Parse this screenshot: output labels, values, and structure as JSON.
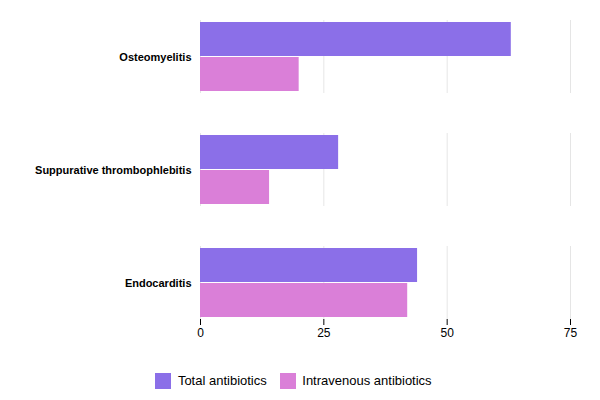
{
  "chart_data": {
    "type": "bar",
    "orientation": "horizontal",
    "categories": [
      "Osteomyelitis",
      "Suppurative thrombophlebitis",
      "Endocarditis"
    ],
    "series": [
      {
        "name": "Total antibiotics",
        "color": "#8B6FE8",
        "values": [
          63,
          28,
          44
        ]
      },
      {
        "name": "Intravenous antibiotics",
        "color": "#DA7FD8",
        "values": [
          20,
          14,
          42
        ]
      }
    ],
    "xlim": [
      0,
      75
    ],
    "xticks": [
      0,
      25,
      50,
      75
    ],
    "grid": true,
    "legend": "bottom"
  }
}
